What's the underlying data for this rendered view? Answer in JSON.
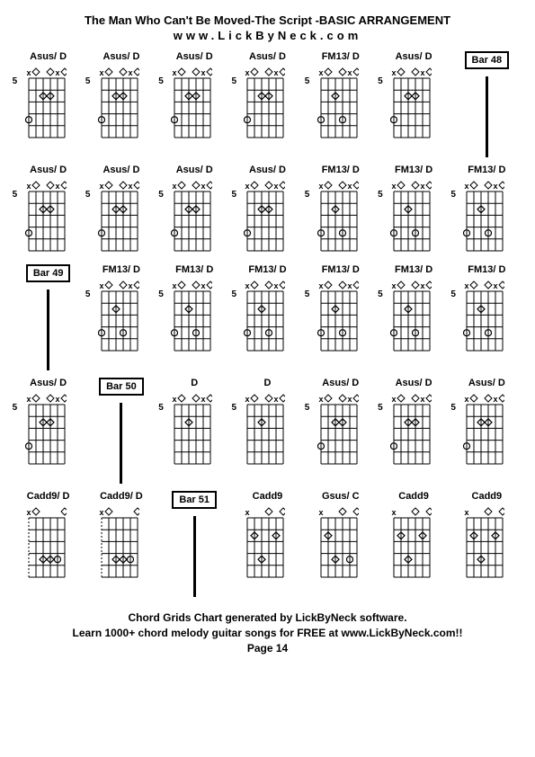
{
  "title": "The Man Who Can't Be Moved-The Script -BASIC ARRANGEMENT",
  "subtitle": "www.LickByNeck.com",
  "footer_line1": "Chord Grids Chart generated by LickByNeck software.",
  "footer_line2": "Learn 1000+ chord melody guitar songs for FREE at www.LickByNeck.com!!",
  "footer_line3": "Page 14",
  "colors": {
    "background": "#ffffff",
    "line": "#000000",
    "text": "#000000"
  },
  "chord_defs": {
    "asus_d": {
      "name": "Asus/ D",
      "fret": "5",
      "mutes": [
        0,
        4
      ],
      "opens": [
        1,
        3,
        5
      ],
      "dots": [
        {
          "s": 2,
          "f": 2
        },
        {
          "s": 3,
          "f": 2
        }
      ],
      "half": [
        {
          "s": 0,
          "f": 4
        }
      ]
    },
    "fm13_d": {
      "name": "FM13/ D",
      "fret": "5",
      "mutes": [
        0,
        4
      ],
      "opens": [
        1,
        3,
        5
      ],
      "dots": [
        {
          "s": 2,
          "f": 2
        }
      ],
      "half": [
        {
          "s": 0,
          "f": 4
        },
        {
          "s": 3,
          "f": 4
        }
      ]
    },
    "d": {
      "name": "D",
      "fret": "5",
      "mutes": [
        0,
        4
      ],
      "opens": [
        1,
        3,
        5
      ],
      "dots": [
        {
          "s": 2,
          "f": 2
        }
      ],
      "half": []
    },
    "cadd9_d": {
      "name": "Cadd9/ D",
      "fret": "",
      "mutes": [
        0
      ],
      "opens": [
        1,
        5
      ],
      "dots": [
        {
          "s": 2,
          "f": 4
        },
        {
          "s": 3,
          "f": 4
        }
      ],
      "half": [
        {
          "s": 4,
          "f": 4
        }
      ],
      "dashed_left": true
    },
    "cadd9": {
      "name": "Cadd9",
      "fret": "",
      "mutes": [
        0
      ],
      "opens": [
        3,
        5
      ],
      "dots": [
        {
          "s": 1,
          "f": 2
        },
        {
          "s": 2,
          "f": 4
        },
        {
          "s": 4,
          "f": 2
        }
      ],
      "half": []
    },
    "gsus_c": {
      "name": "Gsus/ C",
      "fret": "",
      "mutes": [
        0
      ],
      "opens": [
        3,
        5
      ],
      "dots": [
        {
          "s": 1,
          "f": 2
        },
        {
          "s": 2,
          "f": 4
        }
      ],
      "half": [
        {
          "s": 4,
          "f": 4
        }
      ]
    }
  },
  "rows": [
    [
      {
        "type": "chord",
        "ref": "asus_d"
      },
      {
        "type": "chord",
        "ref": "asus_d"
      },
      {
        "type": "chord",
        "ref": "asus_d"
      },
      {
        "type": "chord",
        "ref": "asus_d"
      },
      {
        "type": "chord",
        "ref": "fm13_d"
      },
      {
        "type": "chord",
        "ref": "asus_d"
      },
      {
        "type": "bar",
        "label": "Bar 48"
      }
    ],
    [
      {
        "type": "chord",
        "ref": "asus_d"
      },
      {
        "type": "chord",
        "ref": "asus_d"
      },
      {
        "type": "chord",
        "ref": "asus_d"
      },
      {
        "type": "chord",
        "ref": "asus_d"
      },
      {
        "type": "chord",
        "ref": "fm13_d"
      },
      {
        "type": "chord",
        "ref": "fm13_d"
      },
      {
        "type": "chord",
        "ref": "fm13_d"
      }
    ],
    [
      {
        "type": "bar",
        "label": "Bar 49"
      },
      {
        "type": "chord",
        "ref": "fm13_d"
      },
      {
        "type": "chord",
        "ref": "fm13_d"
      },
      {
        "type": "chord",
        "ref": "fm13_d"
      },
      {
        "type": "chord",
        "ref": "fm13_d"
      },
      {
        "type": "chord",
        "ref": "fm13_d"
      },
      {
        "type": "chord",
        "ref": "fm13_d"
      }
    ],
    [
      {
        "type": "chord",
        "ref": "asus_d"
      },
      {
        "type": "bar",
        "label": "Bar 50"
      },
      {
        "type": "chord",
        "ref": "d"
      },
      {
        "type": "chord",
        "ref": "d"
      },
      {
        "type": "chord",
        "ref": "asus_d"
      },
      {
        "type": "chord",
        "ref": "asus_d"
      },
      {
        "type": "chord",
        "ref": "asus_d"
      }
    ],
    [
      {
        "type": "chord",
        "ref": "cadd9_d"
      },
      {
        "type": "chord",
        "ref": "cadd9_d"
      },
      {
        "type": "bar",
        "label": "Bar 51"
      },
      {
        "type": "chord",
        "ref": "cadd9"
      },
      {
        "type": "chord",
        "ref": "gsus_c"
      },
      {
        "type": "chord",
        "ref": "cadd9"
      },
      {
        "type": "chord",
        "ref": "cadd9"
      }
    ]
  ]
}
